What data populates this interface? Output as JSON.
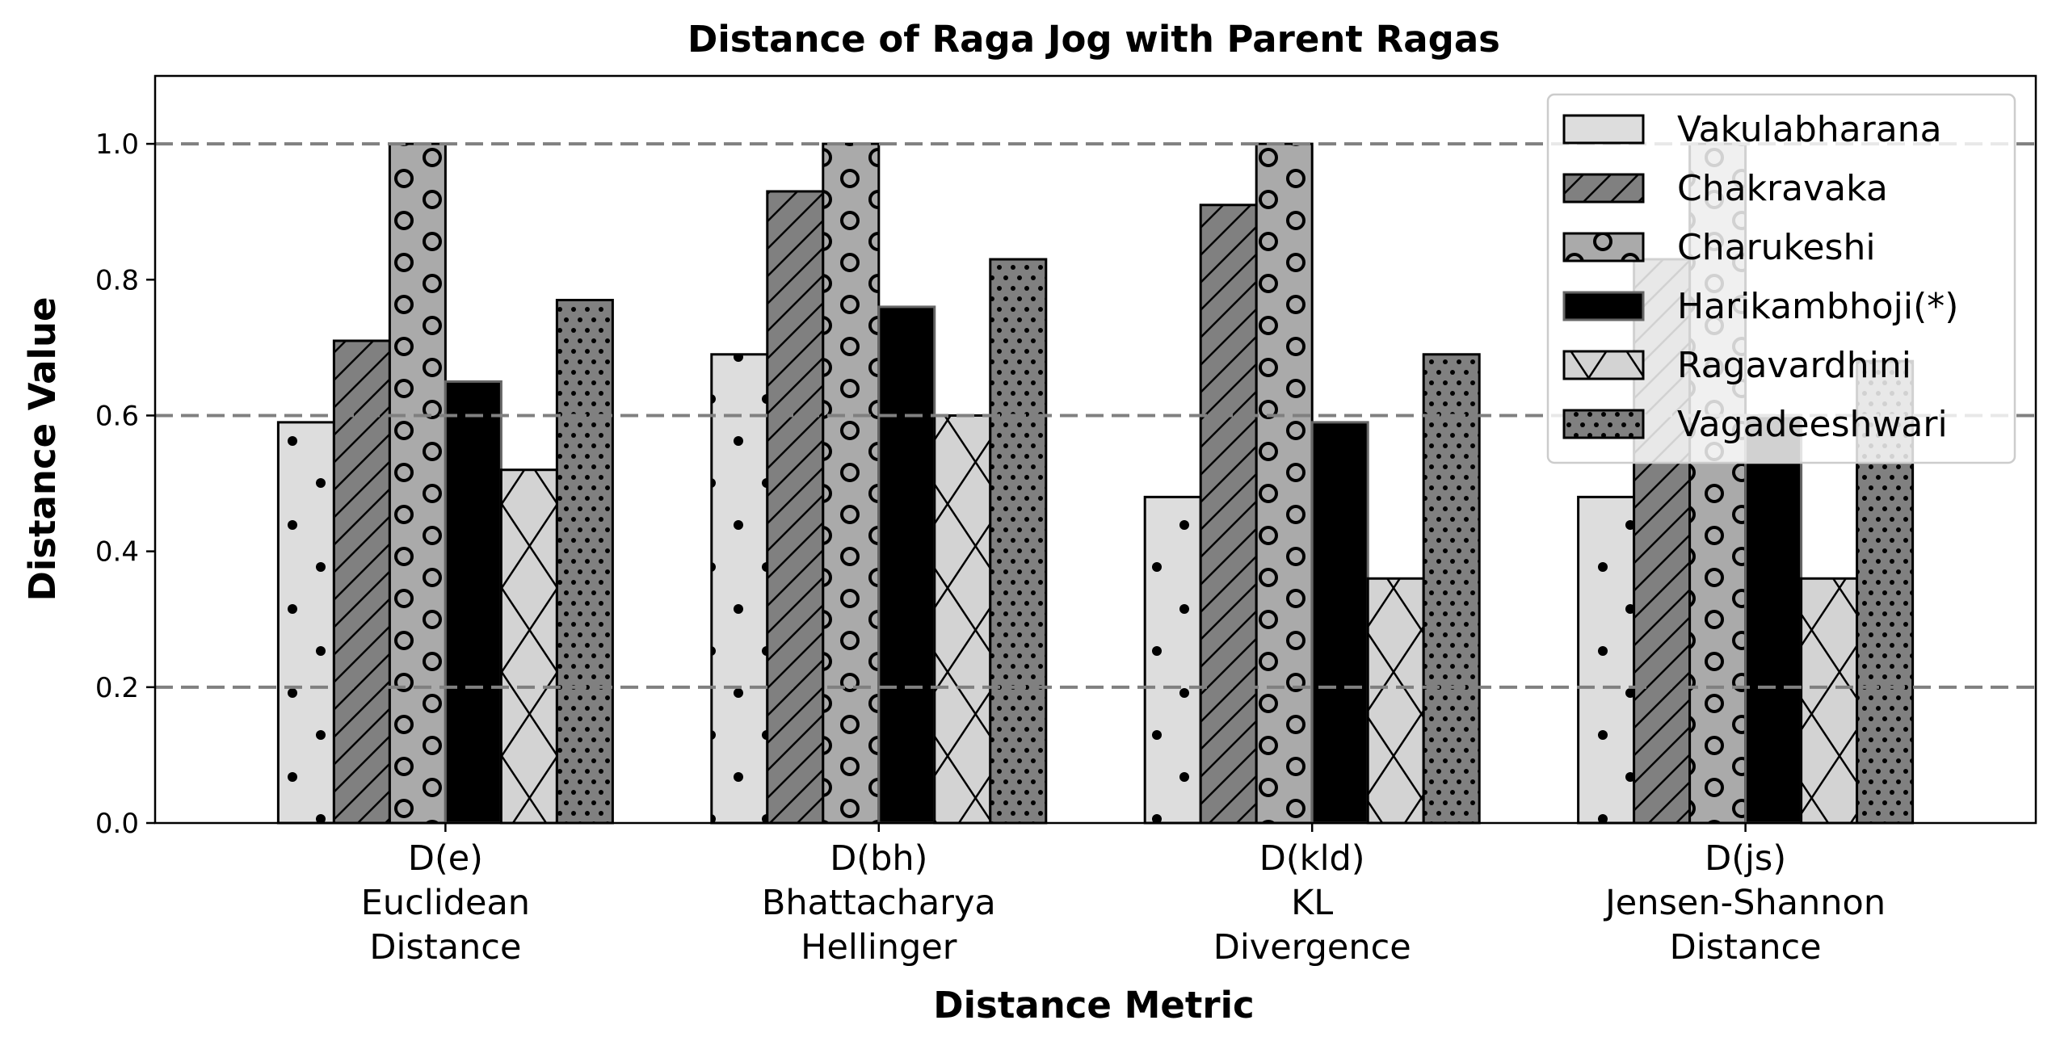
{
  "chart_data": {
    "type": "bar",
    "title": "Distance of Raga Jog with Parent Ragas",
    "xlabel": "Distance Metric",
    "ylabel": "Distance Value",
    "ylim": [
      0,
      1.1
    ],
    "yticks": [
      "0.0",
      "0.2",
      "0.4",
      "0.6",
      "0.8",
      "1.0"
    ],
    "ytick_values": [
      0,
      0.2,
      0.4,
      0.6,
      0.8,
      1.0
    ],
    "hlines": [
      0.2,
      0.6,
      1.0
    ],
    "legend_position": "top-right",
    "categories": [
      {
        "lines": [
          "D(e)",
          "Euclidean",
          "Distance"
        ]
      },
      {
        "lines": [
          "D(bh)",
          "Bhattacharya",
          "Hellinger"
        ]
      },
      {
        "lines": [
          "D(kld)",
          "KL",
          "Divergence"
        ]
      },
      {
        "lines": [
          "D(js)",
          "Jensen-Shannon",
          "Distance"
        ]
      }
    ],
    "series": [
      {
        "name": "Vakulabharana",
        "values": [
          0.59,
          0.69,
          0.48,
          0.48
        ],
        "color": "#dddddd",
        "pattern": "dots"
      },
      {
        "name": "Chakravaka",
        "values": [
          0.71,
          0.93,
          0.91,
          0.83
        ],
        "color": "#808080",
        "pattern": "diagonal"
      },
      {
        "name": "Charukeshi",
        "values": [
          1.0,
          1.0,
          1.0,
          1.0
        ],
        "color": "#aaaaaa",
        "pattern": "circles"
      },
      {
        "name": "Harikambhoji(*)",
        "values": [
          0.65,
          0.76,
          0.59,
          0.6
        ],
        "color": "#000000",
        "pattern": "solid"
      },
      {
        "name": "Ragavardhini",
        "values": [
          0.52,
          0.6,
          0.36,
          0.36
        ],
        "color": "#d3d3d3",
        "pattern": "cross"
      },
      {
        "name": "Vagadeeshwari",
        "values": [
          0.77,
          0.83,
          0.69,
          0.68
        ],
        "color": "#808080",
        "pattern": "smalldots"
      }
    ]
  }
}
